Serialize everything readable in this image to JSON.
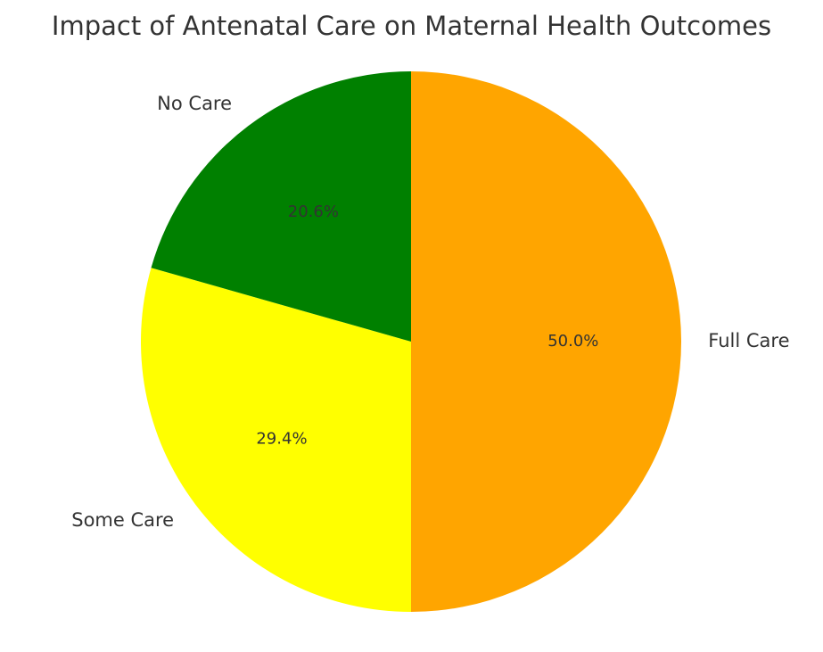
{
  "chart_data": {
    "type": "pie",
    "title": "Impact of Antenatal Care on Maternal Health Outcomes",
    "slices": [
      {
        "label": "Full Care",
        "value": 50.0,
        "pct_label": "50.0%",
        "color": "#FFA500"
      },
      {
        "label": "Some Care",
        "value": 29.4,
        "pct_label": "29.4%",
        "color": "#FFFF00"
      },
      {
        "label": "No Care",
        "value": 20.6,
        "pct_label": "20.6%",
        "color": "#008000"
      }
    ],
    "start_angle": "12 o'clock",
    "direction": "clockwise"
  }
}
